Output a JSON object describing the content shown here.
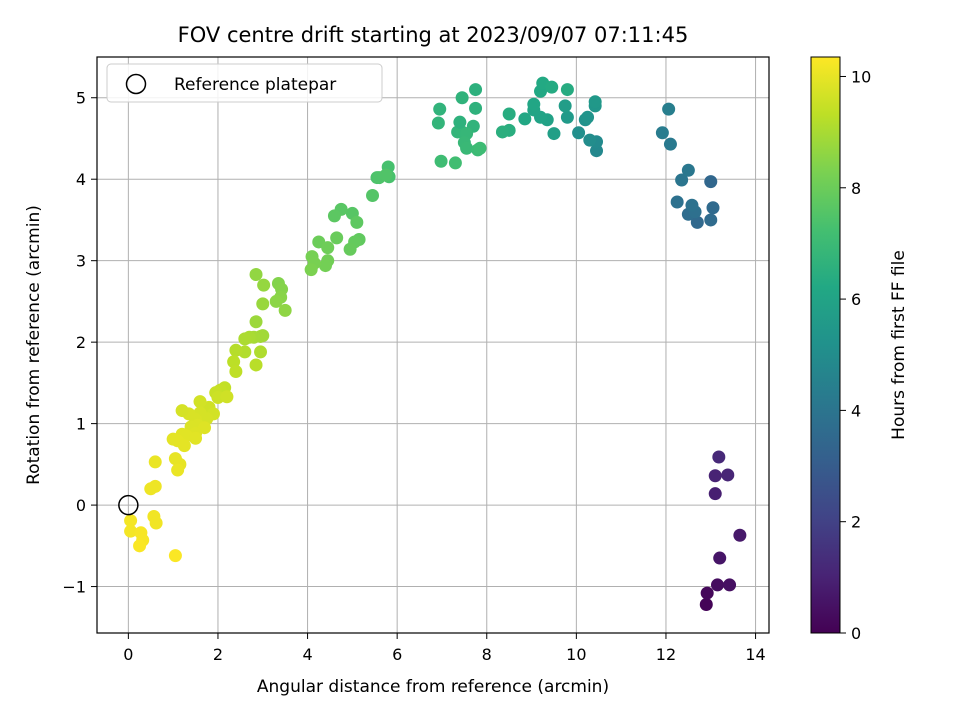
{
  "chart_data": {
    "type": "scatter",
    "title": "FOV centre drift starting at 2023/09/07 07:11:45",
    "xlabel": "Angular distance from reference (arcmin)",
    "ylabel": "Rotation from reference (arcmin)",
    "xlim": [
      -0.7,
      14.3
    ],
    "ylim": [
      -1.57,
      5.5
    ],
    "xticks": [
      0,
      2,
      4,
      6,
      8,
      10,
      12,
      14
    ],
    "yticks": [
      -1,
      0,
      1,
      2,
      3,
      4,
      5
    ],
    "grid": true,
    "legend": {
      "placement": "top-left",
      "entries": [
        "Reference platepar"
      ]
    },
    "reference_point": {
      "x": 0,
      "y": 0
    },
    "colorbar": {
      "label": "Hours from first FF file",
      "range": [
        0,
        10.35
      ],
      "ticks": [
        0,
        2,
        4,
        6,
        8,
        10
      ],
      "colormap": "viridis"
    },
    "points": [
      [
        12.9,
        -1.22,
        0.1
      ],
      [
        12.92,
        -1.08,
        0.2
      ],
      [
        13.15,
        -0.98,
        0.35
      ],
      [
        13.42,
        -0.98,
        0.45
      ],
      [
        13.2,
        -0.65,
        0.6
      ],
      [
        13.65,
        -0.37,
        0.7
      ],
      [
        13.1,
        0.14,
        0.9
      ],
      [
        13.1,
        0.36,
        1.0
      ],
      [
        13.38,
        0.37,
        1.1
      ],
      [
        13.18,
        0.59,
        1.2
      ],
      [
        12.7,
        3.47,
        3.5
      ],
      [
        13.0,
        3.5,
        3.6
      ],
      [
        12.5,
        3.57,
        3.7
      ],
      [
        12.65,
        3.6,
        3.8
      ],
      [
        12.58,
        3.68,
        3.9
      ],
      [
        13.05,
        3.65,
        3.55
      ],
      [
        12.25,
        3.72,
        3.85
      ],
      [
        12.35,
        3.99,
        4.0
      ],
      [
        12.5,
        4.11,
        4.1
      ],
      [
        13.0,
        3.97,
        3.45
      ],
      [
        12.1,
        4.43,
        4.2
      ],
      [
        11.92,
        4.57,
        4.3
      ],
      [
        12.06,
        4.86,
        4.4
      ],
      [
        10.45,
        4.35,
        4.8
      ],
      [
        10.45,
        4.46,
        4.9
      ],
      [
        10.3,
        4.48,
        5.0
      ],
      [
        10.05,
        4.57,
        5.1
      ],
      [
        10.2,
        4.73,
        5.2
      ],
      [
        10.25,
        4.76,
        5.3
      ],
      [
        10.42,
        4.9,
        5.4
      ],
      [
        10.42,
        4.95,
        5.5
      ],
      [
        9.8,
        4.76,
        5.6
      ],
      [
        9.75,
        4.9,
        5.7
      ],
      [
        9.5,
        4.56,
        5.8
      ],
      [
        9.35,
        4.73,
        5.9
      ],
      [
        9.2,
        4.76,
        6.0
      ],
      [
        9.05,
        4.85,
        6.05
      ],
      [
        9.05,
        4.92,
        6.1
      ],
      [
        8.85,
        4.74,
        6.15
      ],
      [
        9.2,
        5.08,
        6.2
      ],
      [
        9.25,
        5.18,
        6.25
      ],
      [
        9.45,
        5.13,
        6.3
      ],
      [
        9.8,
        5.1,
        6.35
      ],
      [
        8.5,
        4.8,
        6.4
      ],
      [
        8.5,
        4.6,
        6.45
      ],
      [
        8.35,
        4.58,
        6.5
      ],
      [
        7.75,
        5.1,
        6.55
      ],
      [
        7.75,
        4.87,
        6.6
      ],
      [
        7.45,
        5.0,
        6.65
      ],
      [
        7.7,
        4.65,
        6.7
      ],
      [
        7.35,
        4.58,
        6.75
      ],
      [
        7.45,
        4.58,
        6.8
      ],
      [
        7.55,
        4.56,
        6.85
      ],
      [
        7.5,
        4.45,
        6.9
      ],
      [
        7.55,
        4.38,
        6.95
      ],
      [
        7.8,
        4.36,
        7.0
      ],
      [
        7.85,
        4.38,
        7.05
      ],
      [
        7.4,
        4.7,
        6.6
      ],
      [
        6.95,
        4.86,
        6.7
      ],
      [
        6.92,
        4.69,
        6.75
      ],
      [
        6.98,
        4.22,
        7.1
      ],
      [
        7.3,
        4.2,
        7.15
      ],
      [
        5.8,
        4.15,
        7.3
      ],
      [
        5.82,
        4.03,
        7.35
      ],
      [
        5.55,
        4.02,
        7.4
      ],
      [
        5.6,
        4.02,
        7.45
      ],
      [
        5.75,
        4.05,
        7.5
      ],
      [
        5.45,
        3.8,
        7.55
      ],
      [
        5.0,
        3.58,
        7.6
      ],
      [
        4.75,
        3.63,
        7.65
      ],
      [
        4.6,
        3.55,
        7.7
      ],
      [
        5.1,
        3.47,
        7.75
      ],
      [
        5.15,
        3.26,
        7.8
      ],
      [
        5.05,
        3.23,
        7.85
      ],
      [
        4.95,
        3.14,
        7.9
      ],
      [
        4.65,
        3.28,
        7.95
      ],
      [
        4.25,
        3.23,
        8.0
      ],
      [
        4.45,
        3.16,
        8.05
      ],
      [
        4.45,
        3.0,
        8.1
      ],
      [
        4.4,
        2.94,
        8.15
      ],
      [
        4.1,
        3.05,
        8.2
      ],
      [
        4.15,
        2.97,
        8.25
      ],
      [
        4.08,
        2.89,
        8.3
      ],
      [
        3.35,
        2.72,
        8.4
      ],
      [
        3.42,
        2.65,
        8.45
      ],
      [
        3.4,
        2.55,
        8.5
      ],
      [
        3.3,
        2.5,
        8.55
      ],
      [
        3.5,
        2.39,
        8.6
      ],
      [
        2.85,
        2.83,
        8.65
      ],
      [
        3.02,
        2.7,
        8.7
      ],
      [
        3.0,
        2.47,
        8.75
      ],
      [
        2.85,
        2.25,
        8.8
      ],
      [
        3.0,
        2.08,
        8.85
      ],
      [
        2.95,
        2.07,
        8.9
      ],
      [
        2.8,
        2.06,
        8.95
      ],
      [
        2.7,
        2.06,
        9.0
      ],
      [
        2.6,
        2.04,
        9.05
      ],
      [
        2.95,
        1.88,
        9.1
      ],
      [
        2.6,
        1.88,
        9.15
      ],
      [
        2.4,
        1.9,
        9.2
      ],
      [
        2.85,
        1.72,
        9.25
      ],
      [
        2.35,
        1.76,
        9.3
      ],
      [
        2.4,
        1.64,
        9.35
      ],
      [
        2.15,
        1.44,
        9.4
      ],
      [
        2.05,
        1.41,
        9.45
      ],
      [
        1.95,
        1.38,
        9.5
      ],
      [
        2.0,
        1.32,
        9.55
      ],
      [
        2.2,
        1.33,
        9.6
      ],
      [
        1.8,
        1.2,
        9.6
      ],
      [
        1.6,
        1.27,
        9.65
      ],
      [
        1.9,
        1.12,
        9.65
      ],
      [
        1.6,
        1.13,
        9.7
      ],
      [
        1.75,
        1.06,
        9.7
      ],
      [
        1.5,
        1.05,
        9.75
      ],
      [
        1.35,
        1.12,
        9.75
      ],
      [
        1.55,
        0.98,
        9.8
      ],
      [
        1.4,
        0.96,
        9.8
      ],
      [
        1.7,
        0.95,
        9.85
      ],
      [
        1.5,
        0.88,
        9.85
      ],
      [
        1.2,
        0.87,
        9.9
      ],
      [
        1.3,
        0.85,
        9.9
      ],
      [
        1.5,
        0.82,
        9.9
      ],
      [
        1.1,
        0.79,
        9.95
      ],
      [
        1.0,
        0.81,
        9.95
      ],
      [
        1.2,
        1.16,
        9.7
      ],
      [
        1.25,
        0.73,
        9.95
      ],
      [
        1.05,
        0.57,
        10.0
      ],
      [
        1.15,
        0.5,
        10.0
      ],
      [
        1.1,
        0.43,
        10.05
      ],
      [
        0.6,
        0.53,
        10.05
      ],
      [
        0.6,
        0.23,
        10.1
      ],
      [
        0.5,
        0.2,
        10.1
      ],
      [
        0.57,
        -0.14,
        10.15
      ],
      [
        0.62,
        -0.22,
        10.15
      ],
      [
        0.05,
        -0.19,
        10.2
      ],
      [
        0.05,
        -0.32,
        10.2
      ],
      [
        0.28,
        -0.34,
        10.25
      ],
      [
        0.32,
        -0.43,
        10.25
      ],
      [
        0.25,
        -0.5,
        10.3
      ],
      [
        1.05,
        -0.62,
        10.3
      ]
    ]
  }
}
